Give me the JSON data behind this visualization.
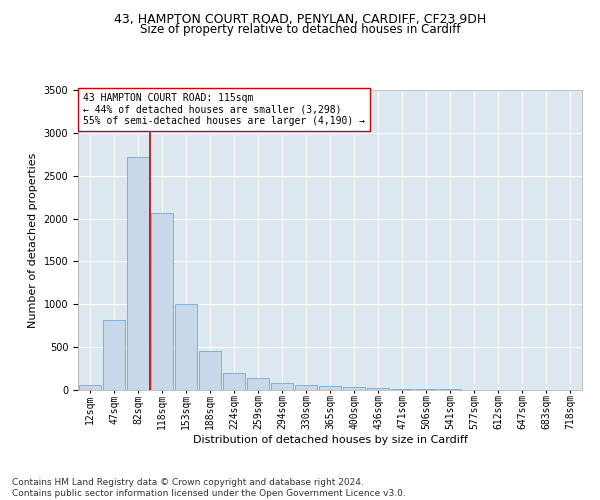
{
  "title_line1": "43, HAMPTON COURT ROAD, PENYLAN, CARDIFF, CF23 9DH",
  "title_line2": "Size of property relative to detached houses in Cardiff",
  "xlabel": "Distribution of detached houses by size in Cardiff",
  "ylabel": "Number of detached properties",
  "categories": [
    "12sqm",
    "47sqm",
    "82sqm",
    "118sqm",
    "153sqm",
    "188sqm",
    "224sqm",
    "259sqm",
    "294sqm",
    "330sqm",
    "365sqm",
    "400sqm",
    "436sqm",
    "471sqm",
    "506sqm",
    "541sqm",
    "577sqm",
    "612sqm",
    "647sqm",
    "683sqm",
    "718sqm"
  ],
  "values": [
    55,
    820,
    2720,
    2060,
    1000,
    450,
    200,
    140,
    80,
    60,
    50,
    35,
    25,
    15,
    10,
    8,
    5,
    4,
    3,
    2,
    1
  ],
  "bar_color": "#c8d8e8",
  "bar_edge_color": "#5a9fd4",
  "vline_x": 2.5,
  "vline_color": "#cc0000",
  "annotation_text": "43 HAMPTON COURT ROAD: 115sqm\n← 44% of detached houses are smaller (3,298)\n55% of semi-detached houses are larger (4,190) →",
  "annotation_box_color": "#ffffff",
  "annotation_box_edge": "#cc0000",
  "ylim": [
    0,
    3500
  ],
  "yticks": [
    0,
    500,
    1000,
    1500,
    2000,
    2500,
    3000,
    3500
  ],
  "background_color": "#dce8f0",
  "footnote": "Contains HM Land Registry data © Crown copyright and database right 2024.\nContains public sector information licensed under the Open Government Licence v3.0.",
  "title_fontsize": 9,
  "subtitle_fontsize": 8.5,
  "axis_label_fontsize": 8,
  "tick_fontsize": 7,
  "annotation_fontsize": 7,
  "footnote_fontsize": 6.5
}
